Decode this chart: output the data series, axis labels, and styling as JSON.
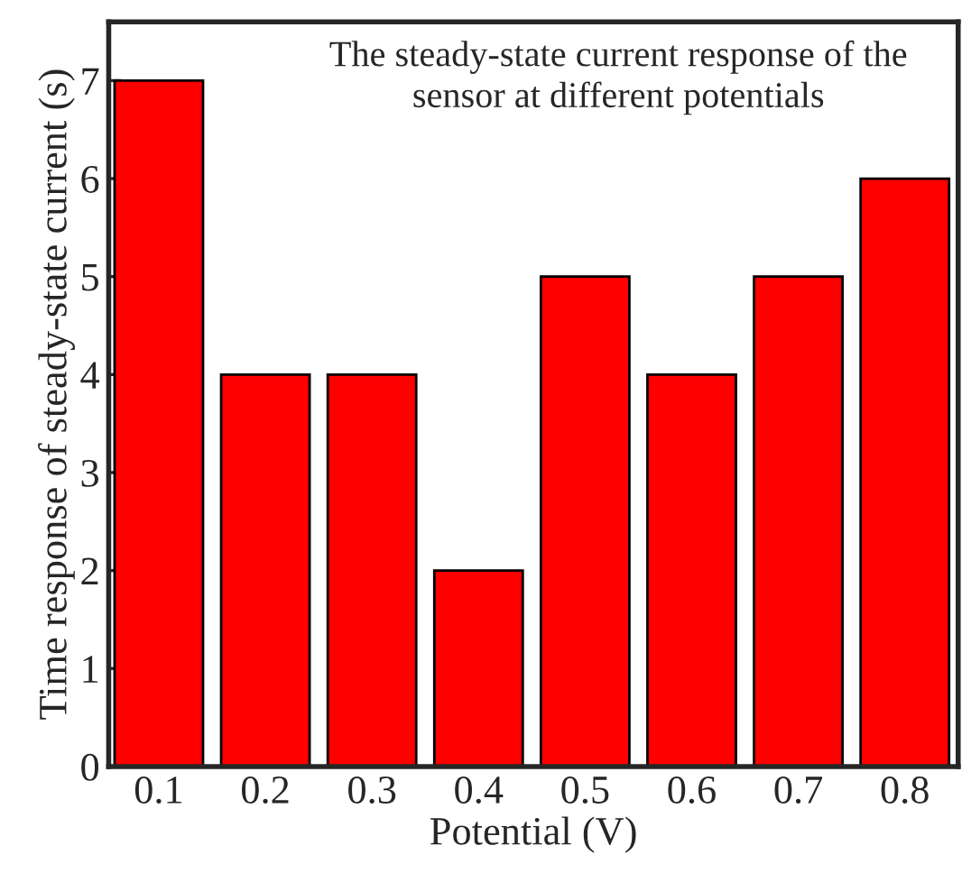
{
  "chart_data": {
    "type": "bar",
    "xlabel": "Potential (V)",
    "ylabel": "Time response of steady-state current (s)",
    "categories": [
      "0.1",
      "0.2",
      "0.3",
      "0.4",
      "0.5",
      "0.6",
      "0.7",
      "0.8"
    ],
    "values": [
      7,
      4,
      4,
      2,
      5,
      4,
      5,
      6
    ],
    "color": "#ff0000",
    "ylim": [
      0,
      7.6
    ],
    "yticks": [
      0,
      1,
      2,
      3,
      4,
      5,
      6,
      7
    ],
    "annotations": [
      "The steady-state current response of the\nsensor at different potentials"
    ],
    "grid": false,
    "legend": false
  }
}
